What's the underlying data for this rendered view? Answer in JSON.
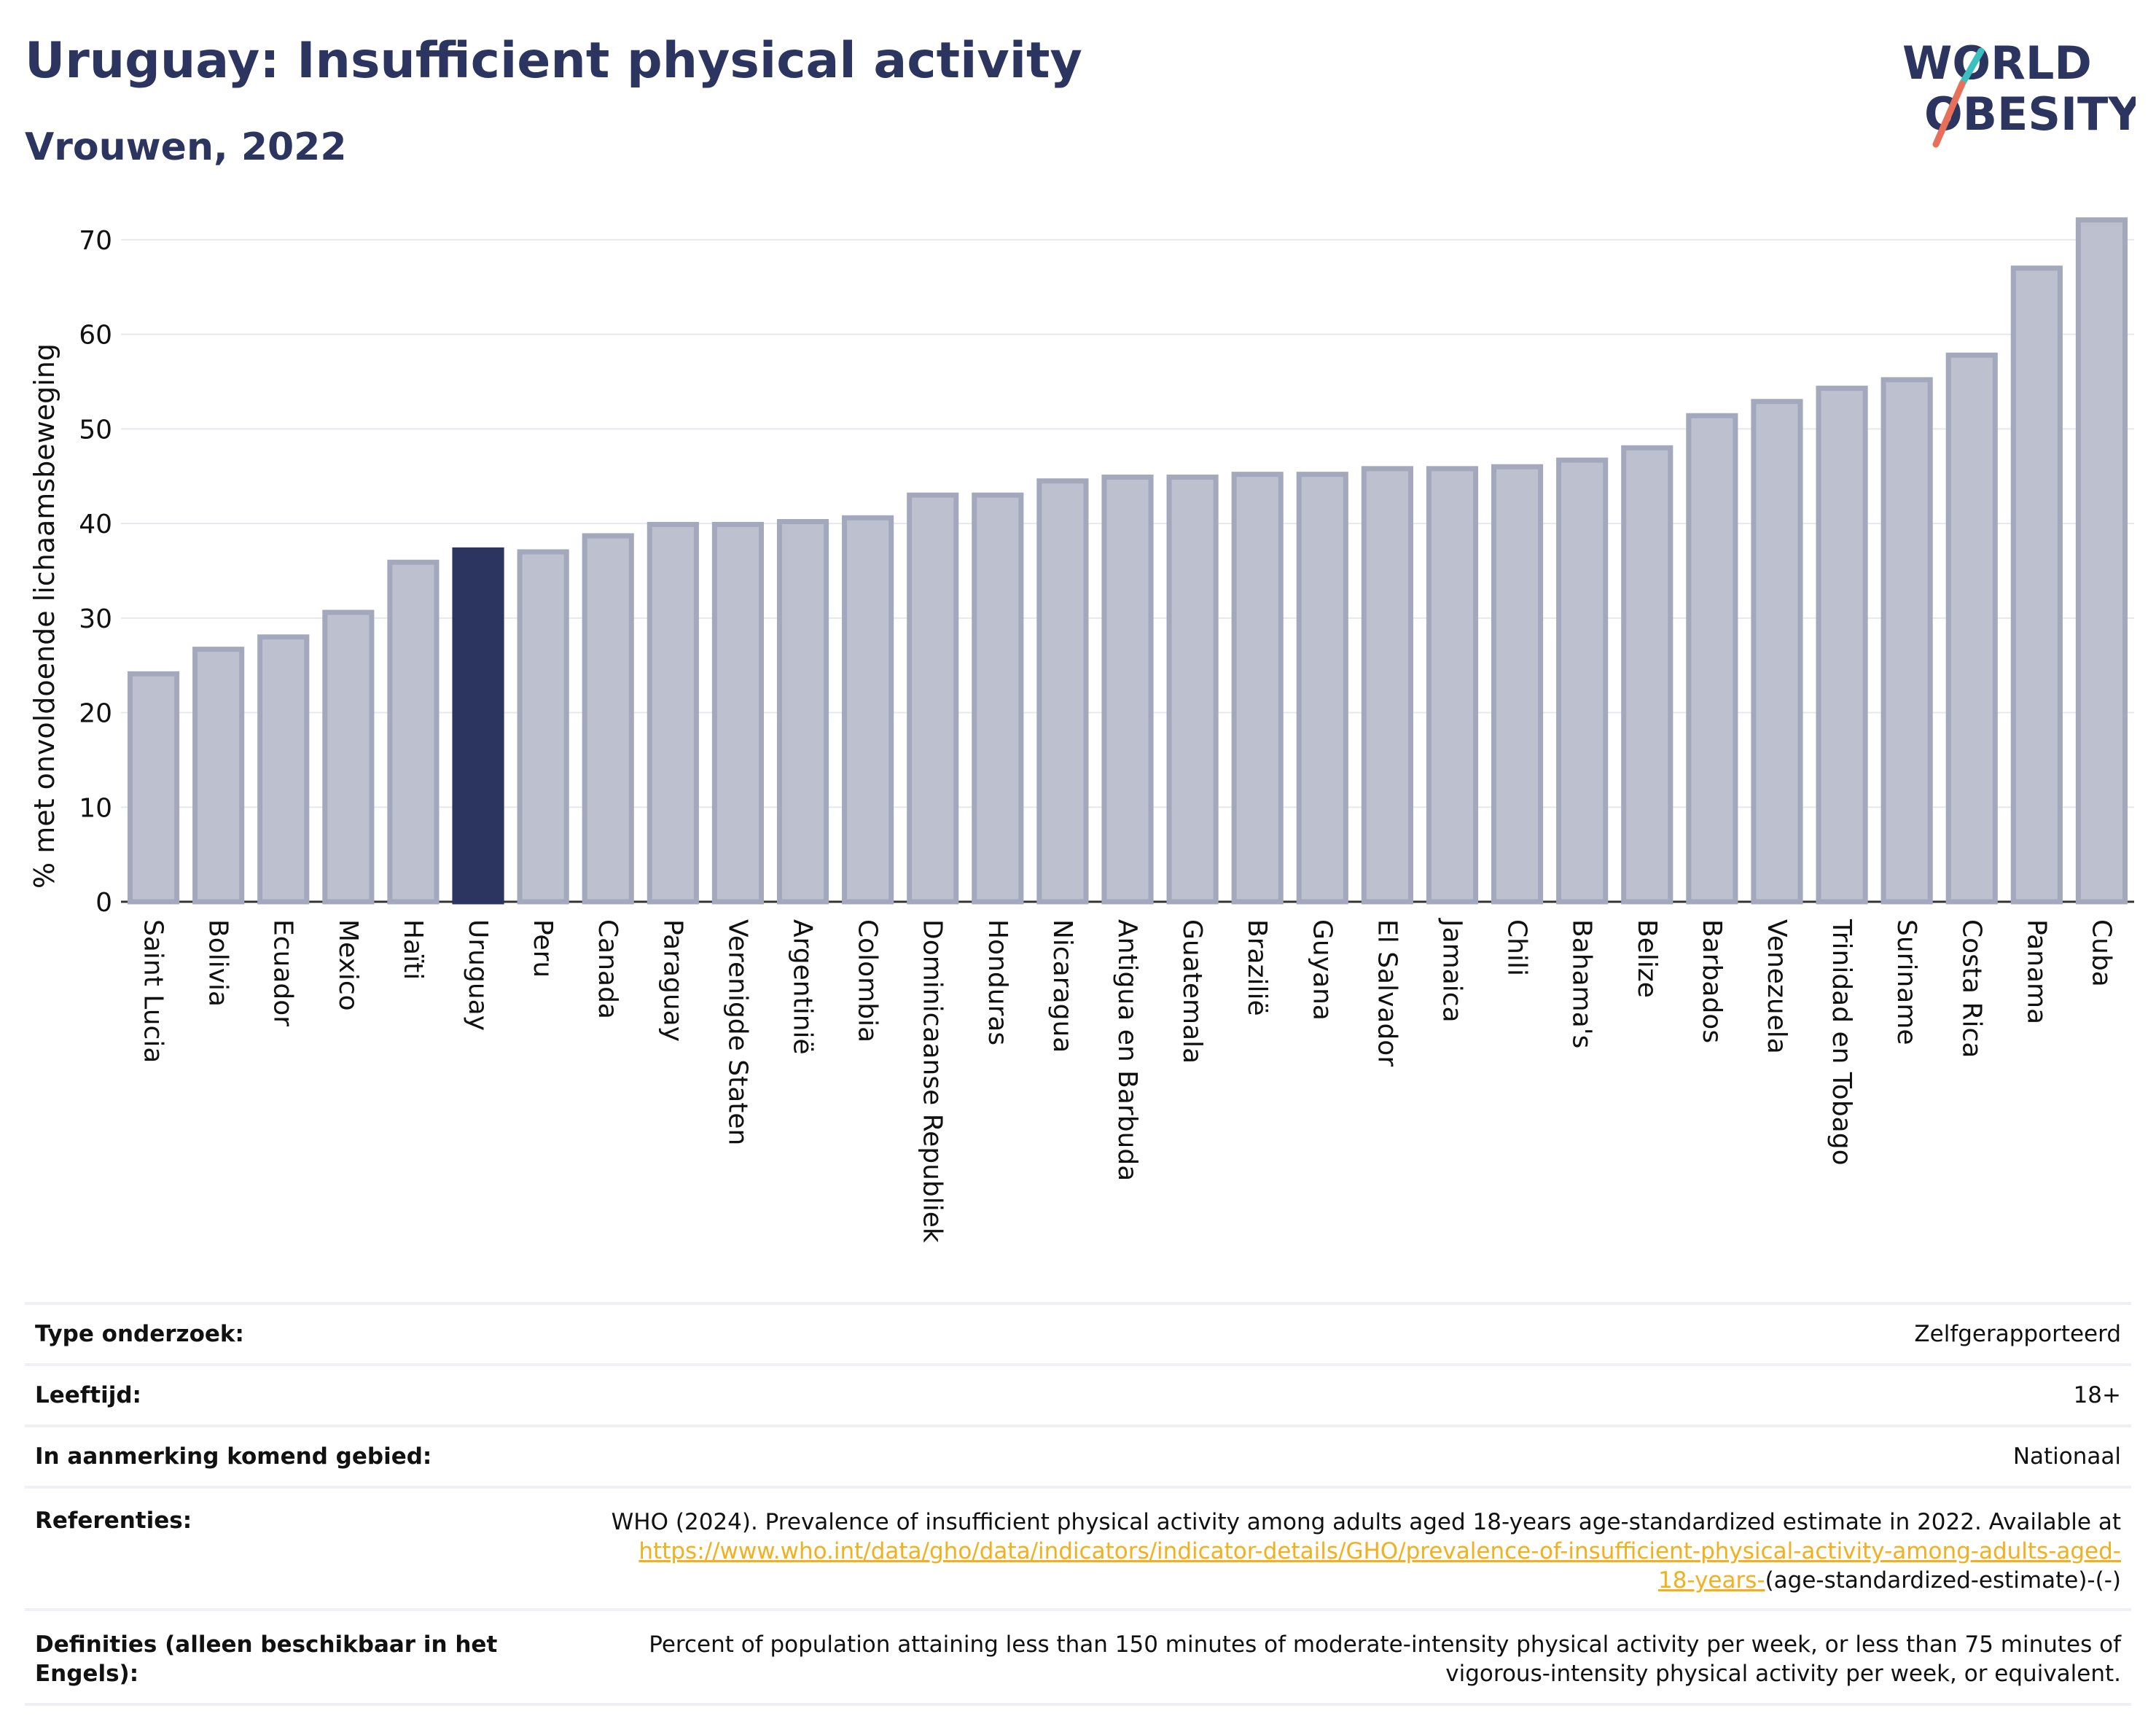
{
  "header": {
    "title": "Uruguay: Insufficient physical activity",
    "subtitle": "Vrouwen, 2022"
  },
  "logo": {
    "line1": "WORLD",
    "line2": "OBESITY"
  },
  "colors": {
    "highlight": "#2c3560",
    "bar": "#bcc0cf",
    "bar_border": "#a3a8bd",
    "title": "#2c3560",
    "link": "#f2b01e"
  },
  "chart_data": {
    "type": "bar",
    "ylabel": "% met onvoldoende lichaamsbeweging",
    "ylim": [
      0,
      73
    ],
    "yticks": [
      0,
      10,
      20,
      30,
      40,
      50,
      60,
      70
    ],
    "grid": true,
    "highlight": "Uruguay",
    "categories": [
      "Saint Lucia",
      "Bolivia",
      "Ecuador",
      "Mexico",
      "Haïti",
      "Uruguay",
      "Peru",
      "Canada",
      "Paraguay",
      "Verenigde Staten",
      "Argentinië",
      "Colombia",
      "Dominicaanse Republiek",
      "Honduras",
      "Nicaragua",
      "Antigua en Barbuda",
      "Guatemala",
      "Brazilië",
      "Guyana",
      "El Salvador",
      "Jamaica",
      "Chili",
      "Bahama's",
      "Belize",
      "Barbados",
      "Venezuela",
      "Trinidad en Tobago",
      "Suriname",
      "Costa Rica",
      "Panama",
      "Cuba"
    ],
    "values": [
      24.1,
      26.7,
      28.0,
      30.6,
      35.9,
      37.2,
      37.0,
      38.7,
      39.9,
      39.9,
      40.2,
      40.6,
      43.0,
      43.0,
      44.5,
      44.9,
      44.9,
      45.2,
      45.2,
      45.8,
      45.8,
      46.0,
      46.7,
      48.0,
      51.4,
      52.9,
      54.3,
      55.2,
      57.8,
      67.0,
      72.1
    ]
  },
  "info_rows": [
    {
      "label": "Type onderzoek:",
      "value": "Zelfgerapporteerd"
    },
    {
      "label": "Leeftijd:",
      "value": "18+"
    },
    {
      "label": "In aanmerking komend gebied:",
      "value": "Nationaal"
    }
  ],
  "references": {
    "label": "Referenties:",
    "text": "WHO (2024). Prevalence of insufficient physical activity among adults aged 18-years age-standardized estimate in 2022. Available at",
    "link1": "https://www.who.int/data/gho/data/indicators/indicator-details/GHO/prevalence-of-insufficient-physical-activity-among-adults-aged-",
    "link2": "18-years-",
    "tail": "(age-standardized-estimate)-(-)"
  },
  "definitions": {
    "label1": "Definities (alleen beschikbaar in het",
    "label2": "Engels):",
    "line1": "Percent of population attaining less than 150 minutes of moderate-intensity physical activity per week, or less than 75 minutes of",
    "line2": "vigorous-intensity physical activity per week, or equivalent."
  }
}
